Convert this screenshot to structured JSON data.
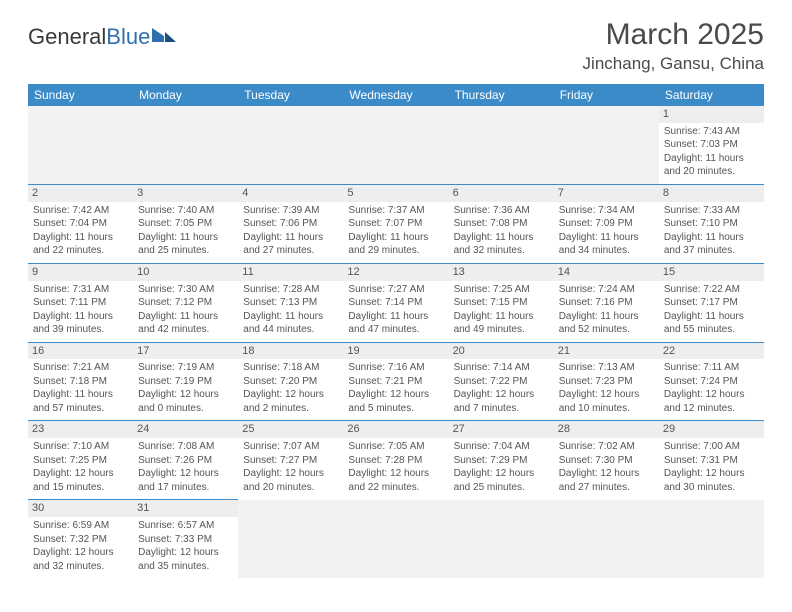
{
  "logo": {
    "part1": "General",
    "part2": "Blue"
  },
  "title": "March 2025",
  "location": "Jinchang, Gansu, China",
  "colors": {
    "header_bg": "#3b8bc9",
    "header_text": "#ffffff",
    "empty_bg": "#f2f2f2",
    "daynum_bg": "#eeeeee",
    "rule": "#3b8bc9",
    "text": "#555555"
  },
  "weekdays": [
    "Sunday",
    "Monday",
    "Tuesday",
    "Wednesday",
    "Thursday",
    "Friday",
    "Saturday"
  ],
  "weeks": [
    [
      null,
      null,
      null,
      null,
      null,
      null,
      {
        "n": "1",
        "sr": "Sunrise: 7:43 AM",
        "ss": "Sunset: 7:03 PM",
        "dl": "Daylight: 11 hours and 20 minutes."
      }
    ],
    [
      {
        "n": "2",
        "sr": "Sunrise: 7:42 AM",
        "ss": "Sunset: 7:04 PM",
        "dl": "Daylight: 11 hours and 22 minutes."
      },
      {
        "n": "3",
        "sr": "Sunrise: 7:40 AM",
        "ss": "Sunset: 7:05 PM",
        "dl": "Daylight: 11 hours and 25 minutes."
      },
      {
        "n": "4",
        "sr": "Sunrise: 7:39 AM",
        "ss": "Sunset: 7:06 PM",
        "dl": "Daylight: 11 hours and 27 minutes."
      },
      {
        "n": "5",
        "sr": "Sunrise: 7:37 AM",
        "ss": "Sunset: 7:07 PM",
        "dl": "Daylight: 11 hours and 29 minutes."
      },
      {
        "n": "6",
        "sr": "Sunrise: 7:36 AM",
        "ss": "Sunset: 7:08 PM",
        "dl": "Daylight: 11 hours and 32 minutes."
      },
      {
        "n": "7",
        "sr": "Sunrise: 7:34 AM",
        "ss": "Sunset: 7:09 PM",
        "dl": "Daylight: 11 hours and 34 minutes."
      },
      {
        "n": "8",
        "sr": "Sunrise: 7:33 AM",
        "ss": "Sunset: 7:10 PM",
        "dl": "Daylight: 11 hours and 37 minutes."
      }
    ],
    [
      {
        "n": "9",
        "sr": "Sunrise: 7:31 AM",
        "ss": "Sunset: 7:11 PM",
        "dl": "Daylight: 11 hours and 39 minutes."
      },
      {
        "n": "10",
        "sr": "Sunrise: 7:30 AM",
        "ss": "Sunset: 7:12 PM",
        "dl": "Daylight: 11 hours and 42 minutes."
      },
      {
        "n": "11",
        "sr": "Sunrise: 7:28 AM",
        "ss": "Sunset: 7:13 PM",
        "dl": "Daylight: 11 hours and 44 minutes."
      },
      {
        "n": "12",
        "sr": "Sunrise: 7:27 AM",
        "ss": "Sunset: 7:14 PM",
        "dl": "Daylight: 11 hours and 47 minutes."
      },
      {
        "n": "13",
        "sr": "Sunrise: 7:25 AM",
        "ss": "Sunset: 7:15 PM",
        "dl": "Daylight: 11 hours and 49 minutes."
      },
      {
        "n": "14",
        "sr": "Sunrise: 7:24 AM",
        "ss": "Sunset: 7:16 PM",
        "dl": "Daylight: 11 hours and 52 minutes."
      },
      {
        "n": "15",
        "sr": "Sunrise: 7:22 AM",
        "ss": "Sunset: 7:17 PM",
        "dl": "Daylight: 11 hours and 55 minutes."
      }
    ],
    [
      {
        "n": "16",
        "sr": "Sunrise: 7:21 AM",
        "ss": "Sunset: 7:18 PM",
        "dl": "Daylight: 11 hours and 57 minutes."
      },
      {
        "n": "17",
        "sr": "Sunrise: 7:19 AM",
        "ss": "Sunset: 7:19 PM",
        "dl": "Daylight: 12 hours and 0 minutes."
      },
      {
        "n": "18",
        "sr": "Sunrise: 7:18 AM",
        "ss": "Sunset: 7:20 PM",
        "dl": "Daylight: 12 hours and 2 minutes."
      },
      {
        "n": "19",
        "sr": "Sunrise: 7:16 AM",
        "ss": "Sunset: 7:21 PM",
        "dl": "Daylight: 12 hours and 5 minutes."
      },
      {
        "n": "20",
        "sr": "Sunrise: 7:14 AM",
        "ss": "Sunset: 7:22 PM",
        "dl": "Daylight: 12 hours and 7 minutes."
      },
      {
        "n": "21",
        "sr": "Sunrise: 7:13 AM",
        "ss": "Sunset: 7:23 PM",
        "dl": "Daylight: 12 hours and 10 minutes."
      },
      {
        "n": "22",
        "sr": "Sunrise: 7:11 AM",
        "ss": "Sunset: 7:24 PM",
        "dl": "Daylight: 12 hours and 12 minutes."
      }
    ],
    [
      {
        "n": "23",
        "sr": "Sunrise: 7:10 AM",
        "ss": "Sunset: 7:25 PM",
        "dl": "Daylight: 12 hours and 15 minutes."
      },
      {
        "n": "24",
        "sr": "Sunrise: 7:08 AM",
        "ss": "Sunset: 7:26 PM",
        "dl": "Daylight: 12 hours and 17 minutes."
      },
      {
        "n": "25",
        "sr": "Sunrise: 7:07 AM",
        "ss": "Sunset: 7:27 PM",
        "dl": "Daylight: 12 hours and 20 minutes."
      },
      {
        "n": "26",
        "sr": "Sunrise: 7:05 AM",
        "ss": "Sunset: 7:28 PM",
        "dl": "Daylight: 12 hours and 22 minutes."
      },
      {
        "n": "27",
        "sr": "Sunrise: 7:04 AM",
        "ss": "Sunset: 7:29 PM",
        "dl": "Daylight: 12 hours and 25 minutes."
      },
      {
        "n": "28",
        "sr": "Sunrise: 7:02 AM",
        "ss": "Sunset: 7:30 PM",
        "dl": "Daylight: 12 hours and 27 minutes."
      },
      {
        "n": "29",
        "sr": "Sunrise: 7:00 AM",
        "ss": "Sunset: 7:31 PM",
        "dl": "Daylight: 12 hours and 30 minutes."
      }
    ],
    [
      {
        "n": "30",
        "sr": "Sunrise: 6:59 AM",
        "ss": "Sunset: 7:32 PM",
        "dl": "Daylight: 12 hours and 32 minutes."
      },
      {
        "n": "31",
        "sr": "Sunrise: 6:57 AM",
        "ss": "Sunset: 7:33 PM",
        "dl": "Daylight: 12 hours and 35 minutes."
      },
      null,
      null,
      null,
      null,
      null
    ]
  ]
}
